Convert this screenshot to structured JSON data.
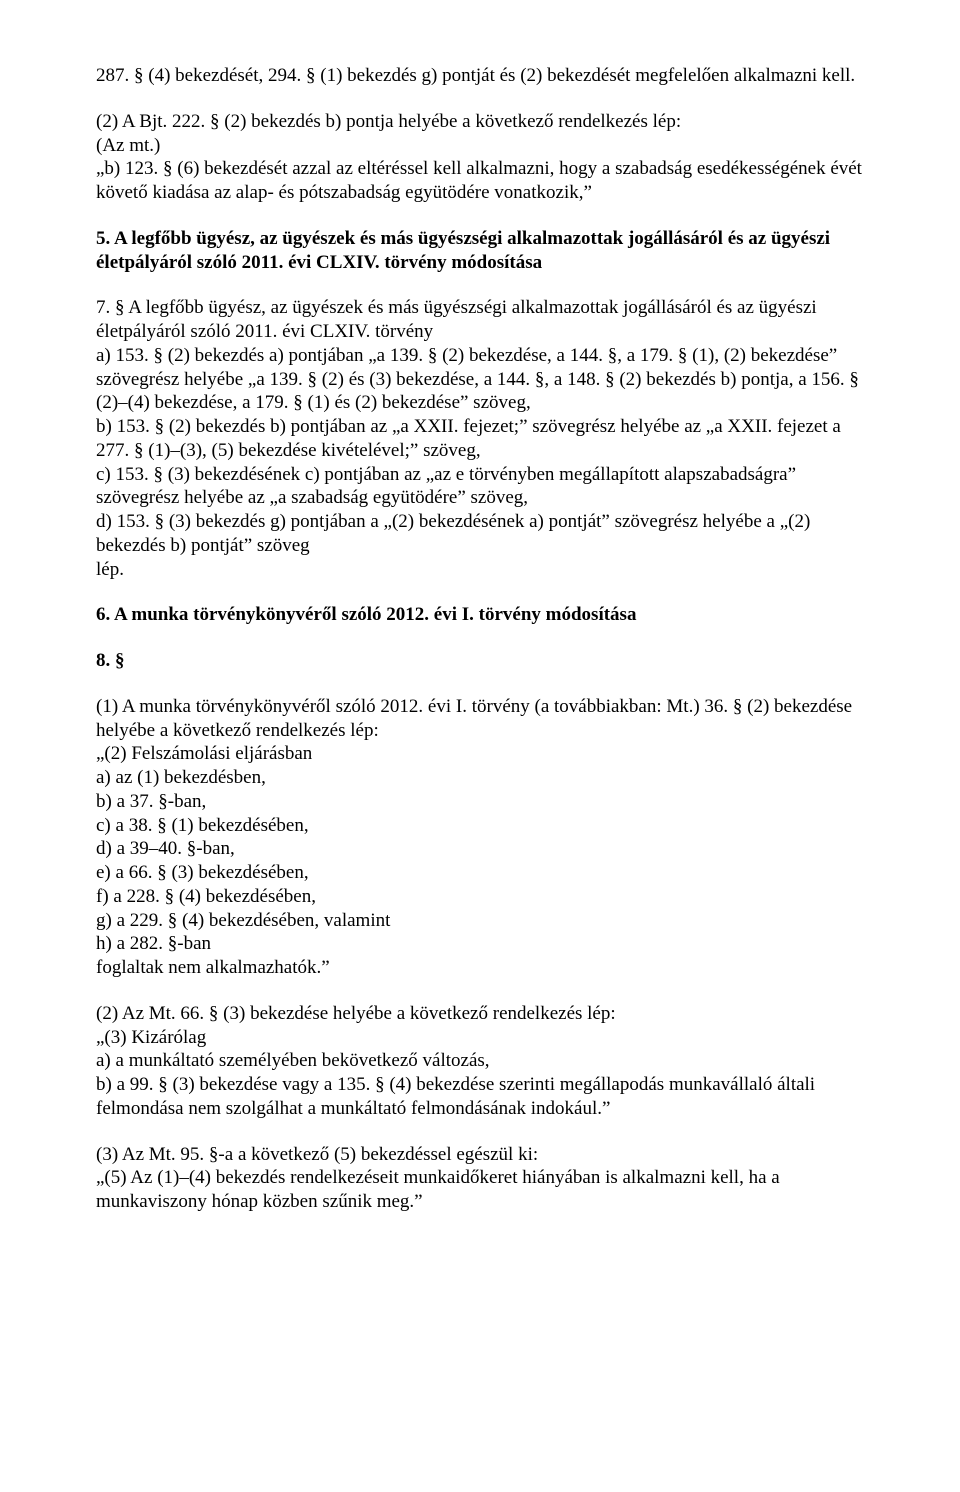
{
  "p1": "287. § (4) bekezdését, 294. § (1) bekezdés g) pontját és (2) bekezdését megfelelően alkalmazni kell.",
  "p2": "(2) A Bjt. 222. § (2) bekezdés b) pontja helyébe a következő rendelkezés lép:",
  "p3": "(Az mt.)",
  "p4": "„b) 123. § (6) bekezdését azzal az eltéréssel kell alkalmazni, hogy a szabadság esedékességének évét követő kiadása az alap- és pótszabadság együtödére vonatkozik,”",
  "h5": "5. A legfőbb ügyész, az ügyészek és más ügyészségi alkalmazottak jogállásáról és az ügyészi életpályáról szóló 2011. évi CLXIV. törvény módosítása",
  "p7": "7. § A legfőbb ügyész, az ügyészek és más ügyészségi alkalmazottak jogállásáról és az ügyészi életpályáról szóló 2011. évi CLXIV. törvény",
  "p8": "a) 153. § (2) bekezdés a) pontjában „a 139. § (2) bekezdése, a 144. §, a 179. § (1), (2) bekezdése” szövegrész helyébe „a 139. § (2) és (3) bekezdése, a 144. §, a 148. § (2) bekezdés b) pontja, a 156. § (2)–(4) bekezdése, a 179. § (1) és (2) bekezdése” szöveg,",
  "p9": "b) 153. § (2) bekezdés b) pontjában az „a XXII. fejezet;” szövegrész helyébe az „a XXII. fejezet a 277. § (1)–(3), (5) bekezdése kivételével;” szöveg,",
  "p10": "c) 153. § (3) bekezdésének c) pontjában az „az e törvényben megállapított alapszabadságra” szövegrész helyébe az „a szabadság együtödére” szöveg,",
  "p11": "d) 153. § (3) bekezdés g) pontjában a „(2) bekezdésének a) pontját” szövegrész helyébe a „(2) bekezdés b) pontját” szöveg",
  "p12": "lép.",
  "h6": "6. A munka törvénykönyvéről szóló 2012. évi I. törvény módosítása",
  "h8": "8. §",
  "p13": "(1) A munka törvénykönyvéről szóló 2012. évi I. törvény (a továbbiakban: Mt.) 36. § (2) bekezdése helyébe a következő rendelkezés lép:",
  "p14": "„(2) Felszámolási eljárásban",
  "p15": "a) az (1) bekezdésben,",
  "p16": "b) a 37. §-ban,",
  "p17": "c) a 38. § (1) bekezdésében,",
  "p18": "d) a 39–40. §-ban,",
  "p19": "e) a 66. § (3) bekezdésében,",
  "p20": "f) a 228. § (4) bekezdésében,",
  "p21": "g) a 229. § (4) bekezdésében, valamint",
  "p22": "h) a 282. §-ban",
  "p23": "foglaltak nem alkalmazhatók.”",
  "p24": "(2) Az Mt. 66. § (3) bekezdése helyébe a következő rendelkezés lép:",
  "p25": "„(3) Kizárólag",
  "p26": "a) a munkáltató személyében bekövetkező változás,",
  "p27": "b) a 99. § (3) bekezdése vagy a 135. § (4) bekezdése szerinti megállapodás munkavállaló általi felmondása nem szolgálhat a munkáltató felmondásának indokául.”",
  "p28": "(3) Az Mt. 95. §-a a következő (5) bekezdéssel egészül ki:",
  "p29": "„(5) Az (1)–(4) bekezdés rendelkezéseit munkaidőkeret hiányában is alkalmazni kell, ha a munkaviszony hónap közben szűnik meg.”"
}
